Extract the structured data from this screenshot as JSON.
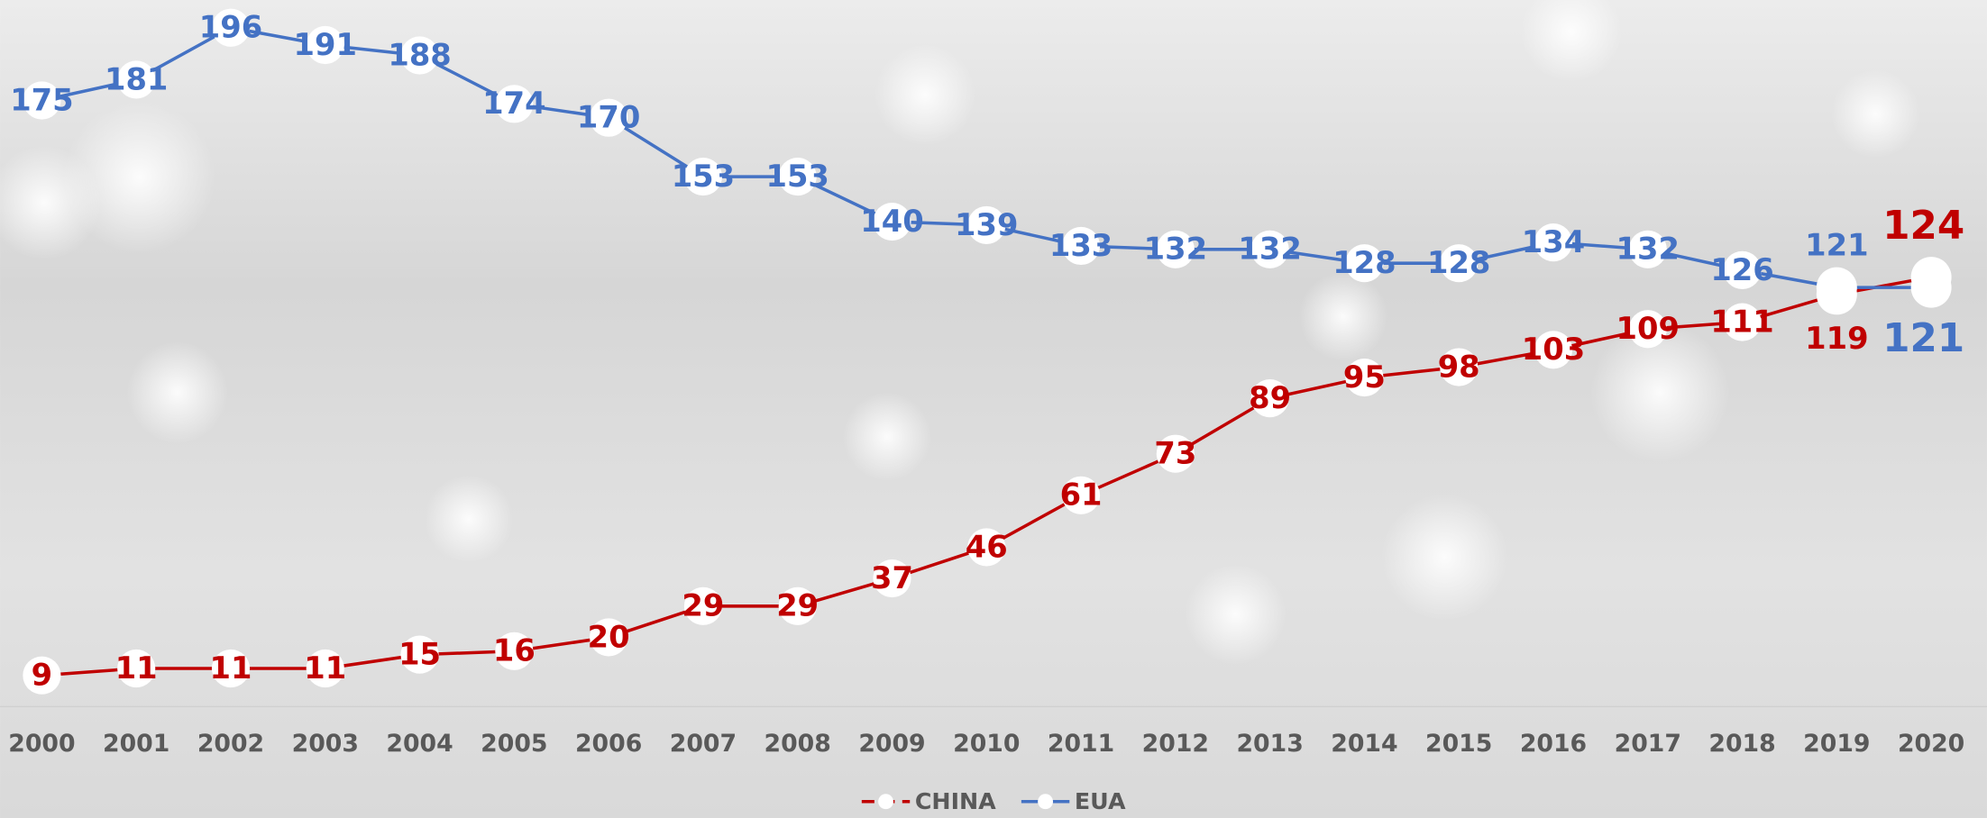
{
  "chart_data": {
    "type": "line",
    "categories": [
      "2000",
      "2001",
      "2002",
      "2003",
      "2004",
      "2005",
      "2006",
      "2007",
      "2008",
      "2009",
      "2010",
      "2011",
      "2012",
      "2013",
      "2014",
      "2015",
      "2016",
      "2017",
      "2018",
      "2019",
      "2020"
    ],
    "series": [
      {
        "name": "CHINA",
        "color": "#c00000",
        "values": [
          9,
          11,
          11,
          11,
          15,
          16,
          20,
          29,
          29,
          37,
          46,
          61,
          73,
          89,
          95,
          98,
          103,
          109,
          111,
          119,
          124
        ]
      },
      {
        "name": "EUA",
        "color": "#4472c4",
        "values": [
          175,
          181,
          196,
          191,
          188,
          174,
          170,
          153,
          153,
          140,
          139,
          133,
          132,
          132,
          128,
          128,
          134,
          132,
          126,
          121,
          121
        ]
      }
    ],
    "ylim": [
      0,
      204
    ]
  }
}
